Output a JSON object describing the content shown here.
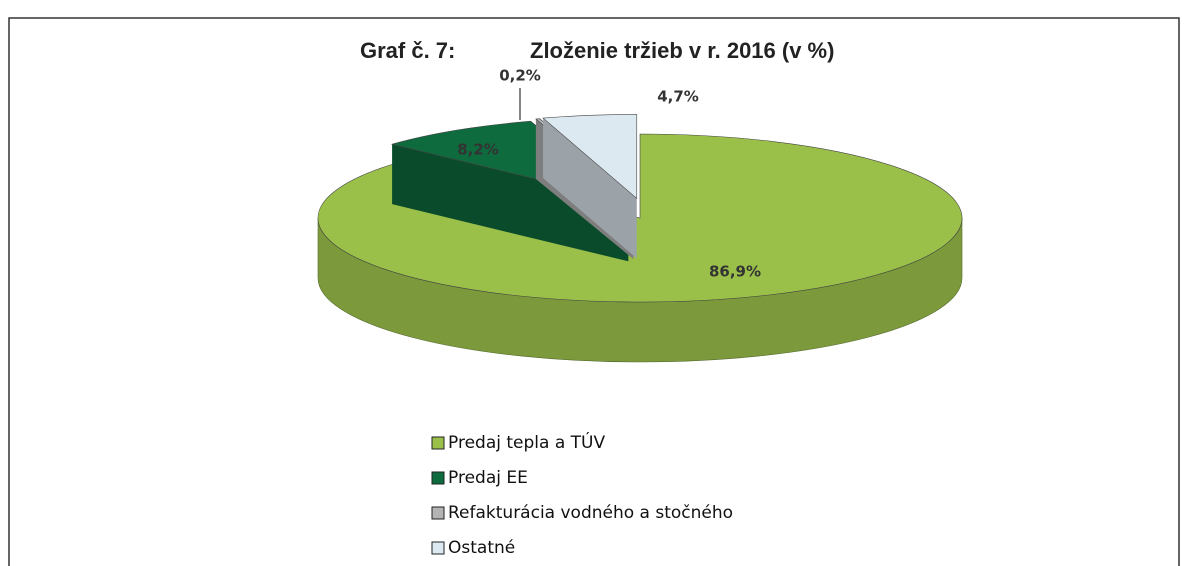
{
  "chart_data": {
    "type": "pie",
    "label": "Graf č. 7:",
    "title": "Zloženie tržieb v r. 2016 (v %)",
    "categories": [
      "Predaj tepla a TÚV",
      "Predaj EE",
      "Refakturácia vodného a stočného",
      "Ostatné"
    ],
    "values": [
      86.9,
      8.2,
      0.2,
      4.7
    ],
    "value_labels": [
      "86,9%",
      "8,2%",
      "0,2%",
      "4,7%"
    ],
    "colors": [
      "#9bc04a",
      "#0e6b3e",
      "#b4b4b4",
      "#dde9f1"
    ],
    "legend": "bottom"
  }
}
